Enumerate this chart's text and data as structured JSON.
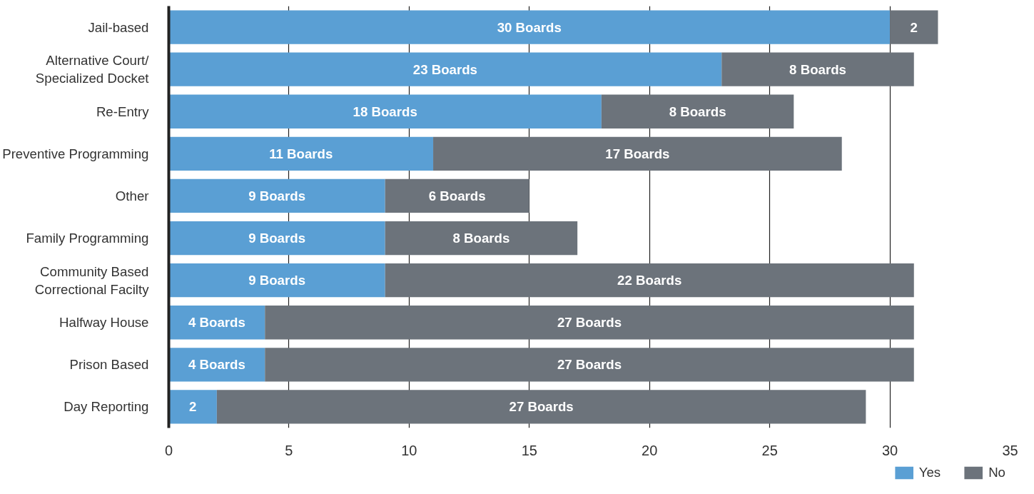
{
  "chart_data": {
    "type": "bar",
    "orientation": "horizontal",
    "stacked": true,
    "categories": [
      "Jail-based",
      "Alternative Court/ Specialized Docket",
      "Re-Entry",
      "Preventive Programming",
      "Other",
      "Family Programming",
      "Community Based Correctional Facilty",
      "Halfway House",
      "Prison Based",
      "Day Reporting"
    ],
    "series": [
      {
        "name": "Yes",
        "color": "#5a9fd4",
        "values": [
          30,
          23,
          18,
          11,
          9,
          9,
          9,
          4,
          4,
          2
        ],
        "value_labels": [
          "30 Boards",
          "23 Boards",
          "18 Boards",
          "11 Boards",
          "9 Boards",
          "9 Boards",
          "9 Boards",
          "4 Boards",
          "4 Boards",
          "2"
        ]
      },
      {
        "name": "No",
        "color": "#6c737b",
        "values": [
          2,
          8,
          8,
          17,
          6,
          8,
          22,
          27,
          27,
          27
        ],
        "value_labels": [
          "2",
          "8 Boards",
          "8 Boards",
          "17 Boards",
          "6 Boards",
          "8 Boards",
          "22 Boards",
          "27 Boards",
          "27 Boards",
          "27 Boards"
        ]
      }
    ],
    "xlim": [
      0,
      35
    ],
    "xticks": [
      0,
      5,
      10,
      15,
      20,
      25,
      30,
      35
    ],
    "grid": "x",
    "legend": "bottom right"
  }
}
